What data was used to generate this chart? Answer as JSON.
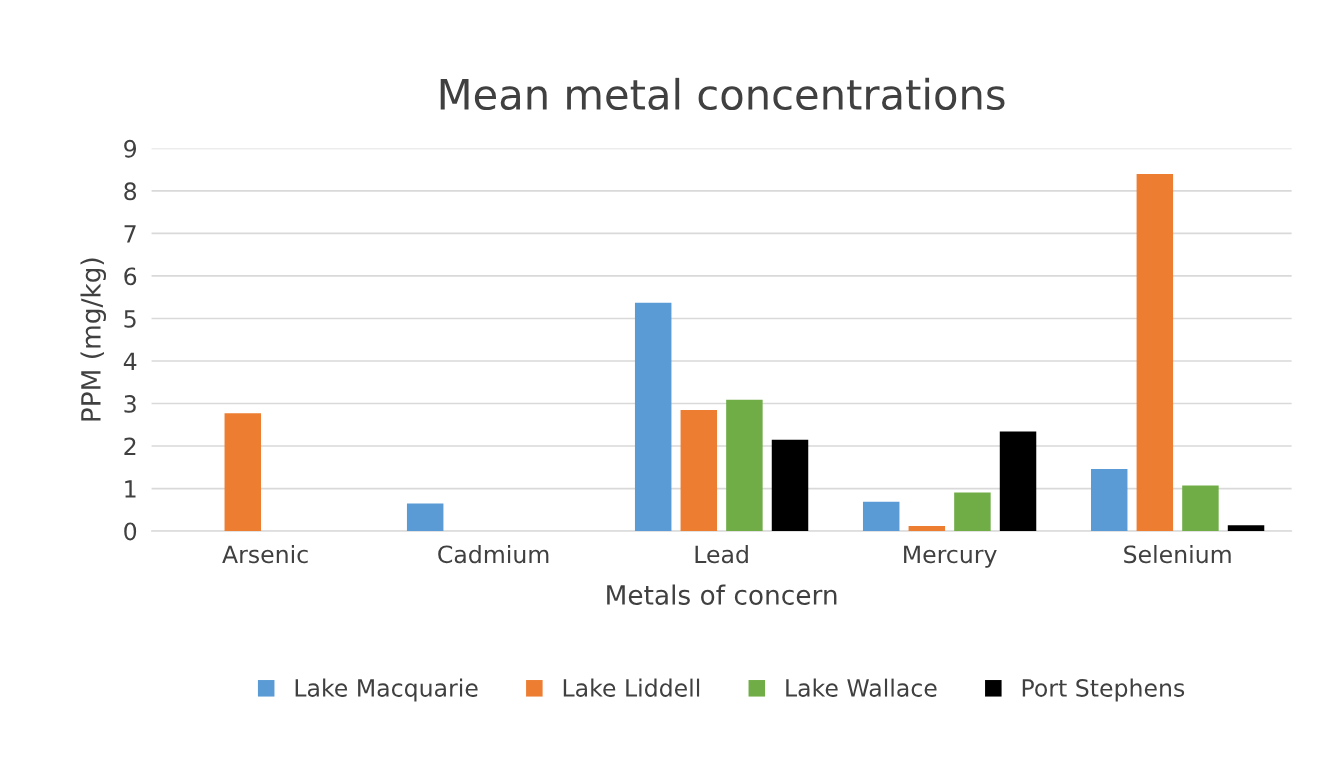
{
  "chart_data": {
    "type": "bar",
    "title": "Mean metal concentrations",
    "xlabel": "Metals of concern",
    "ylabel": "PPM (mg/kg)",
    "categories": [
      "Arsenic",
      "Cadmium",
      "Lead",
      "Mercury",
      "Selenium"
    ],
    "series": [
      {
        "name": "Lake Macquarie",
        "color": "#5b9bd5",
        "values": [
          null,
          0.65,
          5.37,
          0.69,
          1.46
        ]
      },
      {
        "name": "Lake Liddell",
        "color": "#ed7d31",
        "values": [
          2.77,
          null,
          2.85,
          0.12,
          8.4
        ]
      },
      {
        "name": "Lake Wallace",
        "color": "#70ad47",
        "values": [
          null,
          null,
          3.09,
          0.91,
          1.07
        ]
      },
      {
        "name": "Port Stephens",
        "color": "#000000",
        "values": [
          null,
          null,
          2.15,
          2.34,
          0.14
        ]
      }
    ],
    "ylim": [
      0,
      9
    ],
    "yticks": [
      0,
      1,
      2,
      3,
      4,
      5,
      6,
      7,
      8,
      9
    ],
    "grid": "y",
    "legend": "bottom"
  }
}
